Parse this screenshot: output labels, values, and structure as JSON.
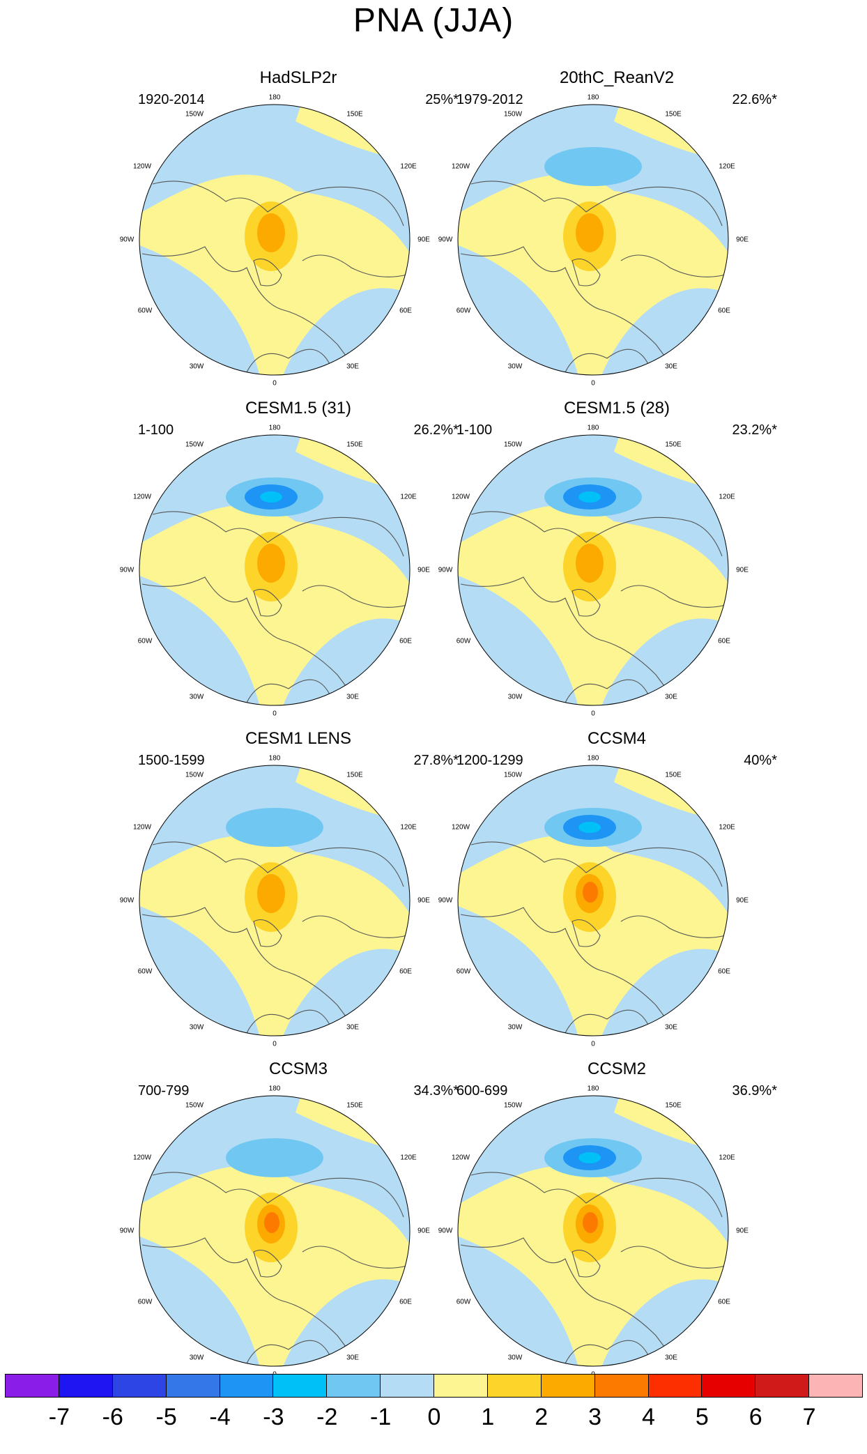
{
  "title": "PNA (JJA)",
  "panels": [
    {
      "name": "HadSLP2r",
      "period": "1920-2014",
      "variance": "25%*"
    },
    {
      "name": "20thC_ReanV2",
      "period": "1979-2012",
      "variance": "22.6%*"
    },
    {
      "name": "CESM1.5 (31)",
      "period": "1-100",
      "variance": "26.2%*"
    },
    {
      "name": "CESM1.5 (28)",
      "period": "1-100",
      "variance": "23.2%*"
    },
    {
      "name": "CESM1 LENS",
      "period": "1500-1599",
      "variance": "27.8%*"
    },
    {
      "name": "CCSM4",
      "period": "1200-1299",
      "variance": "40%*"
    },
    {
      "name": "CCSM3",
      "period": "700-799",
      "variance": "34.3%*"
    },
    {
      "name": "CCSM2",
      "period": "600-699",
      "variance": "36.9%*"
    }
  ],
  "longitude_labels": {
    "top": "180",
    "top_left": "150W",
    "top_right": "150E",
    "upper_left": "120W",
    "upper_right": "120E",
    "left": "90W",
    "right": "90E",
    "lower_left": "60W",
    "lower_right": "60E",
    "bottom_left": "30W",
    "bottom_right": "30E",
    "bottom": "0"
  },
  "colorbar": {
    "ticks": [
      "-7",
      "-6",
      "-5",
      "-4",
      "-3",
      "-2",
      "-1",
      "0",
      "1",
      "2",
      "3",
      "4",
      "5",
      "6",
      "7"
    ],
    "colors": [
      "#8a1ee8",
      "#1f14f2",
      "#2e45e6",
      "#3377e8",
      "#1e94f5",
      "#00c0f8",
      "#70c8f2",
      "#b4dcf4",
      "#fcf591",
      "#fdd52a",
      "#fdaa00",
      "#fd7a00",
      "#fd2e00",
      "#e60000",
      "#d01a1a",
      "#fcb4b4"
    ]
  }
}
